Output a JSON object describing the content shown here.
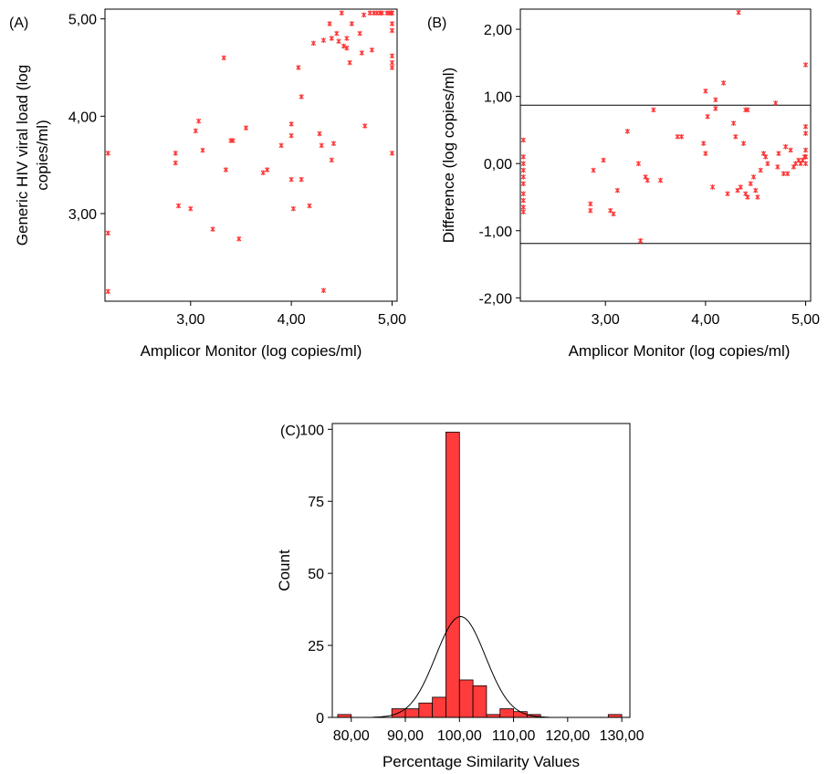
{
  "chart_data": [
    {
      "panel": "(A)",
      "type": "scatter",
      "xlabel": "Amplicor Monitor (log copies/ml)",
      "ylabel": [
        "Generic HIV viral load (log",
        "copies/ml)"
      ],
      "xlim": [
        2.15,
        5.05
      ],
      "ylim": [
        2.1,
        5.1
      ],
      "xticks": [
        "3,00",
        "4,00",
        "5,00"
      ],
      "xtick_values": [
        3,
        4,
        5
      ],
      "yticks": [
        "3,00",
        "4,00",
        "5,00"
      ],
      "ytick_values": [
        3,
        4,
        5
      ],
      "marker_color": "#ff3333",
      "points": [
        [
          2.18,
          3.62
        ],
        [
          2.18,
          2.8
        ],
        [
          2.18,
          2.2
        ],
        [
          2.85,
          3.62
        ],
        [
          2.85,
          3.52
        ],
        [
          2.88,
          3.08
        ],
        [
          3.0,
          3.05
        ],
        [
          3.05,
          3.85
        ],
        [
          3.08,
          3.95
        ],
        [
          3.12,
          3.65
        ],
        [
          3.22,
          2.84
        ],
        [
          3.33,
          4.6
        ],
        [
          3.35,
          3.45
        ],
        [
          3.4,
          3.75
        ],
        [
          3.42,
          3.75
        ],
        [
          3.48,
          2.74
        ],
        [
          3.55,
          3.88
        ],
        [
          3.72,
          3.42
        ],
        [
          3.76,
          3.45
        ],
        [
          3.9,
          3.7
        ],
        [
          4.0,
          3.92
        ],
        [
          4.0,
          3.8
        ],
        [
          4.0,
          3.35
        ],
        [
          4.02,
          3.05
        ],
        [
          4.07,
          4.5
        ],
        [
          4.1,
          3.35
        ],
        [
          4.1,
          4.2
        ],
        [
          4.18,
          3.08
        ],
        [
          4.22,
          4.75
        ],
        [
          4.28,
          3.82
        ],
        [
          4.3,
          3.7
        ],
        [
          4.32,
          4.78
        ],
        [
          4.32,
          2.21
        ],
        [
          4.38,
          4.95
        ],
        [
          4.4,
          4.8
        ],
        [
          4.4,
          3.55
        ],
        [
          4.42,
          3.72
        ],
        [
          4.45,
          4.85
        ],
        [
          4.47,
          4.77
        ],
        [
          4.5,
          5.06
        ],
        [
          4.52,
          4.72
        ],
        [
          4.55,
          4.8
        ],
        [
          4.55,
          4.7
        ],
        [
          4.58,
          4.55
        ],
        [
          4.6,
          4.95
        ],
        [
          4.68,
          4.85
        ],
        [
          4.7,
          4.65
        ],
        [
          4.72,
          5.04
        ],
        [
          4.73,
          3.9
        ],
        [
          4.78,
          5.06
        ],
        [
          4.8,
          4.68
        ],
        [
          4.82,
          5.06
        ],
        [
          4.85,
          5.06
        ],
        [
          4.88,
          5.06
        ],
        [
          4.9,
          5.06
        ],
        [
          4.95,
          5.06
        ],
        [
          4.97,
          5.06
        ],
        [
          4.99,
          5.06
        ],
        [
          5.0,
          5.06
        ],
        [
          5.0,
          4.95
        ],
        [
          5.0,
          4.88
        ],
        [
          5.0,
          4.62
        ],
        [
          5.0,
          4.55
        ],
        [
          5.0,
          4.5
        ],
        [
          5.0,
          3.62
        ]
      ]
    },
    {
      "panel": "(B)",
      "type": "scatter",
      "xlabel": "Amplicor Monitor (log copies/ml)",
      "ylabel": "Difference (log copies/ml)",
      "xlim": [
        2.15,
        5.05
      ],
      "ylim": [
        -2.05,
        2.3
      ],
      "xticks": [
        "3,00",
        "4,00",
        "5,00"
      ],
      "xtick_values": [
        3,
        4,
        5
      ],
      "yticks": [
        "2,00",
        "1,00",
        "0,00",
        "-1,00",
        "-2,00"
      ],
      "ytick_values": [
        2,
        1,
        0,
        -1,
        -2
      ],
      "reference_lines": [
        0.87,
        -1.19
      ],
      "marker_color": "#ff3333",
      "points": [
        [
          2.18,
          0.35
        ],
        [
          2.18,
          0.1
        ],
        [
          2.18,
          0.0
        ],
        [
          2.18,
          -0.1
        ],
        [
          2.18,
          -0.2
        ],
        [
          2.18,
          -0.3
        ],
        [
          2.18,
          -0.45
        ],
        [
          2.18,
          -0.55
        ],
        [
          2.18,
          -0.65
        ],
        [
          2.18,
          -0.72
        ],
        [
          2.85,
          -0.6
        ],
        [
          2.85,
          -0.7
        ],
        [
          2.88,
          -0.1
        ],
        [
          2.98,
          0.05
        ],
        [
          3.05,
          -0.7
        ],
        [
          3.08,
          -0.75
        ],
        [
          3.12,
          -0.4
        ],
        [
          3.22,
          0.48
        ],
        [
          3.33,
          0.0
        ],
        [
          3.35,
          -1.15
        ],
        [
          3.4,
          -0.2
        ],
        [
          3.42,
          -0.25
        ],
        [
          3.48,
          0.8
        ],
        [
          3.55,
          -0.25
        ],
        [
          3.72,
          0.4
        ],
        [
          3.76,
          0.4
        ],
        [
          3.98,
          0.3
        ],
        [
          4.0,
          0.15
        ],
        [
          4.0,
          1.08
        ],
        [
          4.02,
          0.7
        ],
        [
          4.07,
          -0.35
        ],
        [
          4.1,
          0.82
        ],
        [
          4.1,
          0.95
        ],
        [
          4.18,
          1.2
        ],
        [
          4.22,
          -0.45
        ],
        [
          4.28,
          0.6
        ],
        [
          4.3,
          0.4
        ],
        [
          4.32,
          -0.4
        ],
        [
          4.33,
          2.25
        ],
        [
          4.35,
          -0.35
        ],
        [
          4.38,
          0.3
        ],
        [
          4.4,
          0.8
        ],
        [
          4.4,
          -0.45
        ],
        [
          4.42,
          -0.5
        ],
        [
          4.42,
          0.8
        ],
        [
          4.45,
          -0.3
        ],
        [
          4.48,
          -0.2
        ],
        [
          4.5,
          -0.4
        ],
        [
          4.52,
          -0.5
        ],
        [
          4.55,
          -0.1
        ],
        [
          4.58,
          0.15
        ],
        [
          4.6,
          0.1
        ],
        [
          4.62,
          0.0
        ],
        [
          4.7,
          0.9
        ],
        [
          4.72,
          -0.05
        ],
        [
          4.73,
          0.15
        ],
        [
          4.78,
          -0.15
        ],
        [
          4.8,
          0.25
        ],
        [
          4.82,
          -0.15
        ],
        [
          4.85,
          0.2
        ],
        [
          4.88,
          -0.05
        ],
        [
          4.9,
          0.0
        ],
        [
          4.93,
          0.05
        ],
        [
          4.95,
          0.0
        ],
        [
          4.97,
          0.05
        ],
        [
          4.99,
          0.1
        ],
        [
          5.0,
          0.0
        ],
        [
          5.0,
          0.1
        ],
        [
          5.0,
          0.2
        ],
        [
          5.0,
          0.45
        ],
        [
          5.0,
          0.55
        ],
        [
          5.0,
          1.47
        ]
      ]
    },
    {
      "panel": "(C)",
      "type": "bar",
      "subtype": "histogram",
      "xlabel": "Percentage Similarity Values",
      "ylabel": "Count",
      "xlim": [
        76.5,
        131.5
      ],
      "ylim": [
        0,
        102
      ],
      "xticks": [
        "80,00",
        "90,00",
        "100,00",
        "110,00",
        "120,00",
        "130,00"
      ],
      "xtick_values": [
        80,
        90,
        100,
        110,
        120,
        130
      ],
      "yticks": [
        "0",
        "25",
        "50",
        "75",
        "100"
      ],
      "ytick_values": [
        0,
        25,
        50,
        75,
        100
      ],
      "bin_width": 2.5,
      "bins": [
        {
          "start": 77.5,
          "count": 1
        },
        {
          "start": 87.5,
          "count": 3
        },
        {
          "start": 90.0,
          "count": 3
        },
        {
          "start": 92.5,
          "count": 5
        },
        {
          "start": 95.0,
          "count": 7
        },
        {
          "start": 97.5,
          "count": 99
        },
        {
          "start": 100.0,
          "count": 13
        },
        {
          "start": 102.5,
          "count": 11
        },
        {
          "start": 105.0,
          "count": 1
        },
        {
          "start": 107.5,
          "count": 3
        },
        {
          "start": 110.0,
          "count": 2
        },
        {
          "start": 112.5,
          "count": 1
        },
        {
          "start": 127.5,
          "count": 1
        }
      ],
      "normal_curve": {
        "mean": 100.2,
        "peak": 35,
        "sd": 4.6
      },
      "bar_color": "#ff3b3b"
    }
  ]
}
